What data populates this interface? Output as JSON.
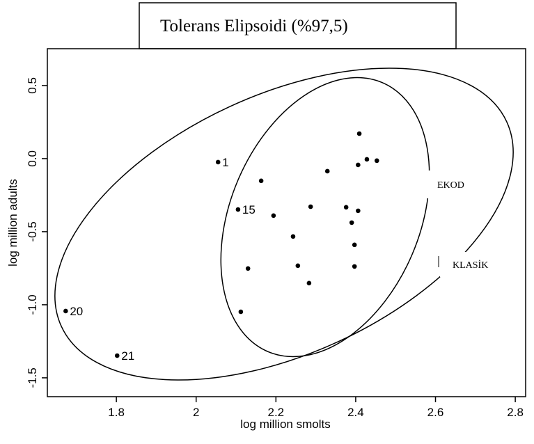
{
  "chart_data": {
    "type": "scatter",
    "title": "Tolerans Elipsoidi (%97,5)",
    "x_label": "log million smolts",
    "y_label": "log million adults",
    "annotations": [
      "EKOD",
      "KLASİK"
    ],
    "x": [
      2.055,
      2.105,
      1.673,
      1.802,
      2.409,
      2.428,
      2.453,
      2.406,
      2.329,
      2.163,
      2.287,
      2.376,
      2.406,
      2.39,
      2.194,
      2.243,
      2.397,
      2.397,
      2.255,
      2.13,
      2.283,
      2.112
    ],
    "values": [
      -0.024,
      -0.348,
      -1.043,
      -1.348,
      0.171,
      -0.005,
      -0.014,
      -0.043,
      -0.086,
      -0.152,
      -0.329,
      -0.333,
      -0.357,
      -0.438,
      -0.39,
      -0.533,
      -0.59,
      -0.738,
      -0.733,
      -0.752,
      -0.852,
      -1.048
    ],
    "point_labels": [
      "1",
      "15",
      "20",
      "21",
      null,
      null,
      null,
      null,
      null,
      null,
      null,
      null,
      null,
      null,
      null,
      null,
      null,
      null,
      null,
      null,
      null,
      null
    ],
    "color": "#000000",
    "xlim": [
      1.627,
      2.826
    ],
    "xticks": [
      1.8,
      2.0,
      2.2,
      2.4,
      2.6,
      2.8
    ],
    "ylim": [
      -1.629,
      0.752
    ],
    "yticks": [
      0.5,
      {
        "value": 0,
        "label": "0.0"
      },
      -0.5,
      {
        "value": -1,
        "label": "-1.0"
      },
      -1.5
    ]
  }
}
